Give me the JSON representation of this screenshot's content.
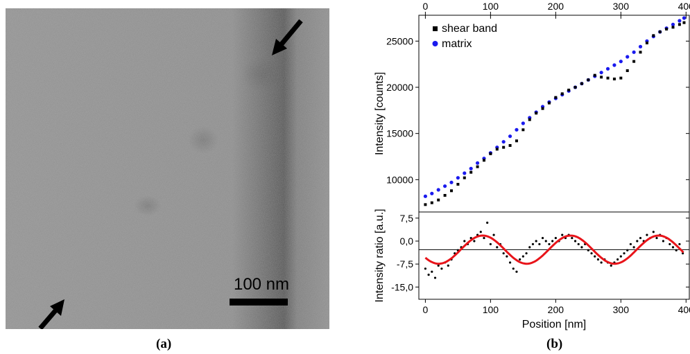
{
  "figure": {
    "panel_a_label": "(a)",
    "panel_b_label": "(b)"
  },
  "micrograph": {
    "scale_bar_label": "100 nm",
    "arrow_icons": [
      "arrow-icon",
      "arrow-icon"
    ]
  },
  "colors": {
    "shear_band": "#000000",
    "matrix": "#1a1aee",
    "fit": "#e8141a"
  },
  "chart_data": [
    {
      "type": "scatter",
      "title": "",
      "xlabel": "",
      "ylabel": "Intensity [counts]",
      "xlim": [
        -10,
        405
      ],
      "ylim": [
        6500,
        27800
      ],
      "x_ticks": [
        0,
        100,
        200,
        300,
        400
      ],
      "y_ticks": [
        10000,
        15000,
        20000,
        25000
      ],
      "legend_position": "top-left",
      "series": [
        {
          "name": "shear band",
          "marker": "square",
          "color": "#000000",
          "points": [
            [
              0,
              7300
            ],
            [
              10,
              7500
            ],
            [
              20,
              7800
            ],
            [
              30,
              8300
            ],
            [
              40,
              8800
            ],
            [
              50,
              9500
            ],
            [
              60,
              10200
            ],
            [
              70,
              10800
            ],
            [
              80,
              11400
            ],
            [
              90,
              12100
            ],
            [
              100,
              12800
            ],
            [
              110,
              13300
            ],
            [
              120,
              13500
            ],
            [
              130,
              13700
            ],
            [
              140,
              14200
            ],
            [
              150,
              15400
            ],
            [
              160,
              16500
            ],
            [
              170,
              17200
            ],
            [
              180,
              17700
            ],
            [
              190,
              18300
            ],
            [
              200,
              18900
            ],
            [
              210,
              19300
            ],
            [
              220,
              19700
            ],
            [
              230,
              20000
            ],
            [
              240,
              20400
            ],
            [
              250,
              20800
            ],
            [
              260,
              21300
            ],
            [
              270,
              21100
            ],
            [
              280,
              21000
            ],
            [
              290,
              20900
            ],
            [
              300,
              21000
            ],
            [
              310,
              21800
            ],
            [
              320,
              22800
            ],
            [
              330,
              23800
            ],
            [
              340,
              24800
            ],
            [
              350,
              25600
            ],
            [
              360,
              26000
            ],
            [
              370,
              26300
            ],
            [
              380,
              26500
            ],
            [
              390,
              26800
            ],
            [
              397,
              27000
            ]
          ]
        },
        {
          "name": "matrix",
          "marker": "circle",
          "color": "#1a1aee",
          "points": [
            [
              0,
              8200
            ],
            [
              10,
              8500
            ],
            [
              20,
              8900
            ],
            [
              30,
              9300
            ],
            [
              40,
              9700
            ],
            [
              50,
              10200
            ],
            [
              60,
              10700
            ],
            [
              70,
              11200
            ],
            [
              80,
              11800
            ],
            [
              90,
              12300
            ],
            [
              100,
              12900
            ],
            [
              110,
              13500
            ],
            [
              120,
              14100
            ],
            [
              130,
              14700
            ],
            [
              140,
              15400
            ],
            [
              150,
              16100
            ],
            [
              160,
              16700
            ],
            [
              170,
              17300
            ],
            [
              180,
              17900
            ],
            [
              190,
              18400
            ],
            [
              200,
              18800
            ],
            [
              210,
              19200
            ],
            [
              220,
              19600
            ],
            [
              230,
              20000
            ],
            [
              240,
              20400
            ],
            [
              250,
              20800
            ],
            [
              260,
              21200
            ],
            [
              270,
              21600
            ],
            [
              280,
              22000
            ],
            [
              290,
              22400
            ],
            [
              300,
              22800
            ],
            [
              310,
              23300
            ],
            [
              320,
              23800
            ],
            [
              330,
              24400
            ],
            [
              340,
              25000
            ],
            [
              350,
              25500
            ],
            [
              360,
              26000
            ],
            [
              370,
              26400
            ],
            [
              380,
              26800
            ],
            [
              390,
              27200
            ],
            [
              397,
              27500
            ]
          ]
        }
      ]
    },
    {
      "type": "scatter",
      "title": "",
      "xlabel": "Position [nm]",
      "ylabel": "Intensity ratio [a.u.]",
      "xlim": [
        -10,
        405
      ],
      "ylim": [
        -19,
        9.5
      ],
      "x_ticks": [
        0,
        100,
        200,
        300,
        400
      ],
      "y_ticks": [
        7.5,
        0.0,
        -7.5,
        -15.0
      ],
      "y_tick_labels": [
        "7,5",
        "0,0",
        "-7,5",
        "-15,0"
      ],
      "reference_line_y": -2.8,
      "series": [
        {
          "name": "",
          "marker": "dot",
          "color": "#000000",
          "points": [
            [
              0,
              -9
            ],
            [
              5,
              -11
            ],
            [
              10,
              -10
            ],
            [
              15,
              -12
            ],
            [
              20,
              -8
            ],
            [
              25,
              -9
            ],
            [
              30,
              -7
            ],
            [
              35,
              -8
            ],
            [
              40,
              -6
            ],
            [
              45,
              -4
            ],
            [
              50,
              -3
            ],
            [
              55,
              -2
            ],
            [
              60,
              0
            ],
            [
              65,
              -1
            ],
            [
              70,
              1
            ],
            [
              75,
              0
            ],
            [
              80,
              2
            ],
            [
              85,
              3
            ],
            [
              90,
              1
            ],
            [
              95,
              6
            ],
            [
              100,
              -1
            ],
            [
              105,
              2
            ],
            [
              110,
              -2
            ],
            [
              115,
              -1
            ],
            [
              120,
              -4
            ],
            [
              125,
              -5
            ],
            [
              130,
              -7
            ],
            [
              135,
              -9
            ],
            [
              140,
              -10
            ],
            [
              145,
              -6
            ],
            [
              150,
              -5
            ],
            [
              155,
              -4
            ],
            [
              160,
              -2
            ],
            [
              165,
              -1
            ],
            [
              170,
              0
            ],
            [
              175,
              -1
            ],
            [
              180,
              1
            ],
            [
              185,
              0
            ],
            [
              190,
              -1
            ],
            [
              195,
              0
            ],
            [
              200,
              1
            ],
            [
              205,
              0
            ],
            [
              210,
              2
            ],
            [
              215,
              1
            ],
            [
              220,
              2
            ],
            [
              225,
              1
            ],
            [
              230,
              0
            ],
            [
              235,
              -1
            ],
            [
              240,
              -2
            ],
            [
              245,
              -1
            ],
            [
              250,
              -3
            ],
            [
              255,
              -4
            ],
            [
              260,
              -5
            ],
            [
              265,
              -6
            ],
            [
              270,
              -7
            ],
            [
              275,
              -6
            ],
            [
              280,
              -7
            ],
            [
              285,
              -8
            ],
            [
              290,
              -7
            ],
            [
              295,
              -6
            ],
            [
              300,
              -5
            ],
            [
              305,
              -4
            ],
            [
              310,
              -3
            ],
            [
              315,
              -1
            ],
            [
              320,
              -2
            ],
            [
              325,
              0
            ],
            [
              330,
              1
            ],
            [
              335,
              0
            ],
            [
              340,
              2
            ],
            [
              345,
              1
            ],
            [
              350,
              3
            ],
            [
              355,
              1
            ],
            [
              360,
              2
            ],
            [
              365,
              0
            ],
            [
              370,
              1
            ],
            [
              375,
              -1
            ],
            [
              380,
              -2
            ],
            [
              385,
              -3
            ],
            [
              390,
              -1
            ],
            [
              395,
              -4
            ]
          ]
        },
        {
          "name": "",
          "kind": "sine_fit",
          "color": "#e8141a",
          "offset": -2.8,
          "amplitude": 4.6,
          "period": 135,
          "peak_x": 88,
          "x_range": [
            0,
            397
          ]
        }
      ]
    }
  ]
}
